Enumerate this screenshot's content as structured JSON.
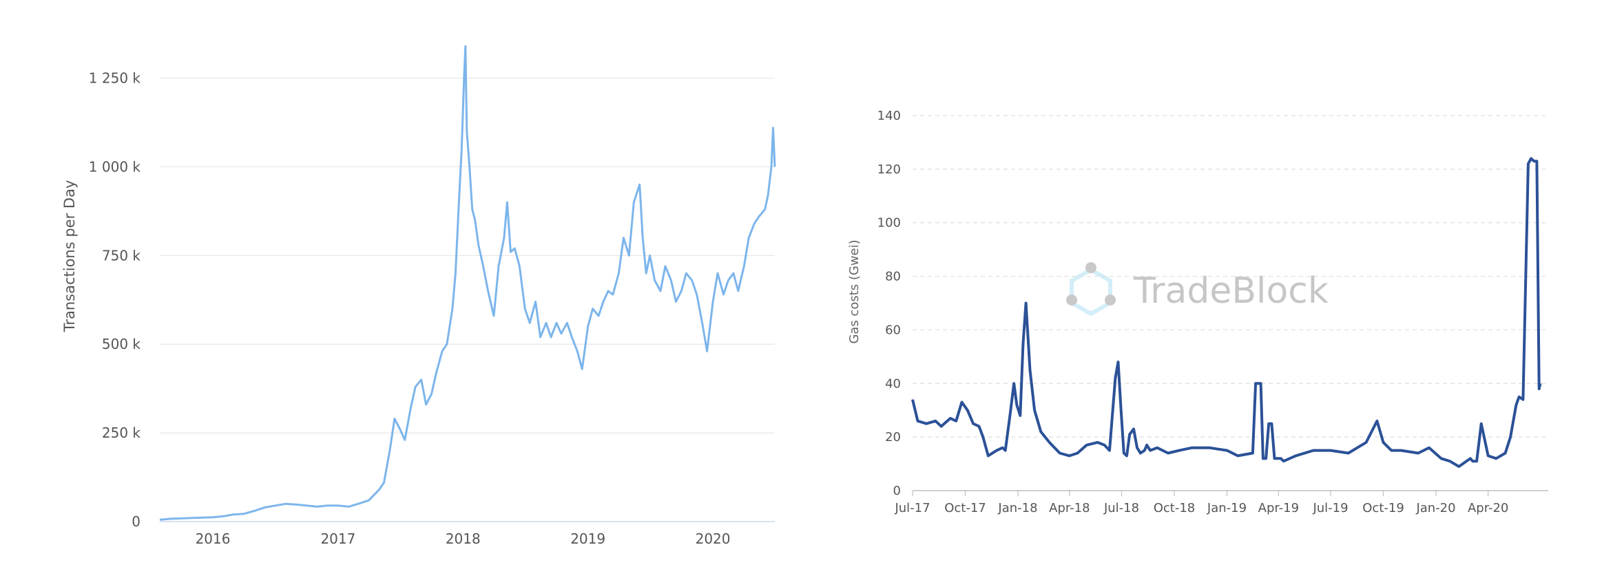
{
  "chart_data": [
    {
      "type": "line",
      "title": "",
      "xlabel": "",
      "ylabel": "Transactions per Day",
      "ylim": [
        0,
        1350000
      ],
      "xlim": [
        "2015-07-30",
        "2020-06-30"
      ],
      "y_tick_values": [
        0,
        250000,
        500000,
        750000,
        1000000,
        1250000
      ],
      "y_tick_labels": [
        "0",
        "250 k",
        "500 k",
        "750 k",
        "1 000 k",
        "1 250 k"
      ],
      "x_tick_values": [
        "2016-01-01",
        "2017-01-01",
        "2018-01-01",
        "2019-01-01",
        "2020-01-01"
      ],
      "x_tick_labels": [
        "2016",
        "2017",
        "2018",
        "2019",
        "2020"
      ],
      "grid": true,
      "legend": "none",
      "color": "#7cb5ec",
      "series": [
        {
          "x": [
            "2015-07-30",
            "2015-09-01",
            "2015-11-01",
            "2016-01-01",
            "2016-02-01",
            "2016-03-01",
            "2016-04-01",
            "2016-05-01",
            "2016-06-01",
            "2016-07-01",
            "2016-08-01",
            "2016-09-01",
            "2016-10-01",
            "2016-11-01",
            "2016-12-01",
            "2017-01-01",
            "2017-02-01",
            "2017-03-01",
            "2017-04-01",
            "2017-05-01",
            "2017-05-15",
            "2017-06-01",
            "2017-06-15",
            "2017-07-01",
            "2017-07-15",
            "2017-08-01",
            "2017-08-15",
            "2017-09-01",
            "2017-09-15",
            "2017-10-01",
            "2017-10-15",
            "2017-11-01",
            "2017-11-15",
            "2017-12-01",
            "2017-12-10",
            "2017-12-20",
            "2017-12-28",
            "2018-01-04",
            "2018-01-08",
            "2018-01-12",
            "2018-01-20",
            "2018-01-28",
            "2018-02-05",
            "2018-02-15",
            "2018-03-01",
            "2018-03-15",
            "2018-04-01",
            "2018-04-15",
            "2018-05-01",
            "2018-05-10",
            "2018-05-20",
            "2018-06-01",
            "2018-06-15",
            "2018-07-01",
            "2018-07-15",
            "2018-08-01",
            "2018-08-15",
            "2018-09-01",
            "2018-09-15",
            "2018-10-01",
            "2018-10-15",
            "2018-11-01",
            "2018-11-15",
            "2018-12-01",
            "2018-12-15",
            "2019-01-01",
            "2019-01-15",
            "2019-02-01",
            "2019-02-15",
            "2019-03-01",
            "2019-03-15",
            "2019-04-01",
            "2019-04-15",
            "2019-05-01",
            "2019-05-15",
            "2019-06-01",
            "2019-06-10",
            "2019-06-20",
            "2019-07-01",
            "2019-07-15",
            "2019-08-01",
            "2019-08-15",
            "2019-09-01",
            "2019-09-15",
            "2019-10-01",
            "2019-10-15",
            "2019-11-01",
            "2019-11-15",
            "2019-12-01",
            "2019-12-15",
            "2020-01-01",
            "2020-01-15",
            "2020-02-01",
            "2020-02-15",
            "2020-03-01",
            "2020-03-15",
            "2020-04-01",
            "2020-04-15",
            "2020-05-01",
            "2020-05-15",
            "2020-06-01",
            "2020-06-10",
            "2020-06-20",
            "2020-06-25",
            "2020-06-30"
          ],
          "y": [
            5000,
            8000,
            10000,
            12000,
            15000,
            20000,
            22000,
            30000,
            40000,
            45000,
            50000,
            48000,
            45000,
            42000,
            45000,
            45000,
            42000,
            50000,
            60000,
            90000,
            110000,
            200000,
            290000,
            260000,
            230000,
            320000,
            380000,
            400000,
            330000,
            360000,
            420000,
            480000,
            500000,
            600000,
            700000,
            900000,
            1050000,
            1250000,
            1340000,
            1100000,
            1000000,
            880000,
            850000,
            780000,
            720000,
            650000,
            580000,
            720000,
            800000,
            900000,
            760000,
            770000,
            720000,
            600000,
            560000,
            620000,
            520000,
            560000,
            520000,
            560000,
            530000,
            560000,
            520000,
            480000,
            430000,
            550000,
            600000,
            580000,
            620000,
            650000,
            640000,
            700000,
            800000,
            750000,
            900000,
            950000,
            800000,
            700000,
            750000,
            680000,
            650000,
            720000,
            680000,
            620000,
            650000,
            700000,
            680000,
            640000,
            560000,
            480000,
            620000,
            700000,
            640000,
            680000,
            700000,
            650000,
            720000,
            800000,
            840000,
            860000,
            880000,
            920000,
            1000000,
            1110000,
            1000000
          ]
        }
      ]
    },
    {
      "type": "line",
      "title": "",
      "xlabel": "",
      "ylabel": "Gas costs (Gwei)",
      "ylim": [
        0,
        140
      ],
      "xlim": [
        "2017-07-01",
        "2020-07-15"
      ],
      "y_tick_values": [
        0,
        20,
        40,
        60,
        80,
        100,
        120,
        140
      ],
      "y_tick_labels": [
        "0",
        "20",
        "40",
        "60",
        "80",
        "100",
        "120",
        "140"
      ],
      "x_tick_values": [
        "2017-07-01",
        "2017-10-01",
        "2018-01-01",
        "2018-04-01",
        "2018-07-01",
        "2018-10-01",
        "2019-01-01",
        "2019-04-01",
        "2019-07-01",
        "2019-10-01",
        "2020-01-01",
        "2020-04-01"
      ],
      "x_tick_labels": [
        "Jul-17",
        "Oct-17",
        "Jan-18",
        "Apr-18",
        "Jul-18",
        "Oct-18",
        "Jan-19",
        "Apr-19",
        "Jul-19",
        "Oct-19",
        "Jan-20",
        "Apr-20"
      ],
      "grid": true,
      "legend": "none",
      "color": "#2b5197",
      "series": [
        {
          "x": [
            "2017-07-01",
            "2017-07-10",
            "2017-07-25",
            "2017-08-10",
            "2017-08-20",
            "2017-09-05",
            "2017-09-15",
            "2017-09-25",
            "2017-10-05",
            "2017-10-15",
            "2017-10-25",
            "2017-11-01",
            "2017-11-10",
            "2017-11-25",
            "2017-12-05",
            "2017-12-10",
            "2017-12-18",
            "2017-12-25",
            "2017-12-30",
            "2018-01-05",
            "2018-01-10",
            "2018-01-15",
            "2018-01-22",
            "2018-01-30",
            "2018-02-10",
            "2018-02-25",
            "2018-03-15",
            "2018-04-01",
            "2018-04-15",
            "2018-05-01",
            "2018-05-20",
            "2018-06-01",
            "2018-06-10",
            "2018-06-20",
            "2018-06-25",
            "2018-06-30",
            "2018-07-05",
            "2018-07-10",
            "2018-07-15",
            "2018-07-22",
            "2018-07-28",
            "2018-08-03",
            "2018-08-10",
            "2018-08-14",
            "2018-08-20",
            "2018-09-01",
            "2018-09-20",
            "2018-10-10",
            "2018-11-01",
            "2018-12-01",
            "2019-01-01",
            "2019-01-20",
            "2019-02-15",
            "2019-02-20",
            "2019-03-01",
            "2019-03-05",
            "2019-03-10",
            "2019-03-15",
            "2019-03-20",
            "2019-03-25",
            "2019-04-01",
            "2019-04-05",
            "2019-04-10",
            "2019-05-01",
            "2019-06-01",
            "2019-07-01",
            "2019-08-01",
            "2019-09-01",
            "2019-09-20",
            "2019-10-01",
            "2019-10-15",
            "2019-11-01",
            "2019-12-01",
            "2019-12-20",
            "2020-01-10",
            "2020-01-25",
            "2020-02-10",
            "2020-03-01",
            "2020-03-05",
            "2020-03-12",
            "2020-03-20",
            "2020-04-01",
            "2020-04-15",
            "2020-05-01",
            "2020-05-10",
            "2020-05-20",
            "2020-05-25",
            "2020-06-01",
            "2020-06-10",
            "2020-06-15",
            "2020-06-20",
            "2020-06-25",
            "2020-06-29",
            "2020-07-01"
          ],
          "y": [
            34,
            26,
            25,
            26,
            24,
            27,
            26,
            33,
            30,
            25,
            24,
            20,
            13,
            15,
            16,
            15,
            28,
            40,
            32,
            28,
            55,
            70,
            45,
            30,
            22,
            18,
            14,
            13,
            14,
            17,
            18,
            17,
            15,
            42,
            48,
            30,
            14,
            13,
            21,
            23,
            16,
            14,
            15,
            17,
            15,
            16,
            14,
            15,
            16,
            16,
            15,
            13,
            14,
            40,
            40,
            12,
            12,
            25,
            25,
            12,
            12,
            12,
            11,
            13,
            15,
            15,
            14,
            18,
            26,
            18,
            15,
            15,
            14,
            16,
            12,
            11,
            9,
            12,
            11,
            11,
            25,
            13,
            12,
            14,
            20,
            32,
            35,
            34,
            122,
            124,
            123,
            123,
            38,
            40
          ]
        }
      ]
    }
  ],
  "watermark": {
    "text": "TradeBlock",
    "icon": "tradeblock-hexagon-logo-icon"
  }
}
